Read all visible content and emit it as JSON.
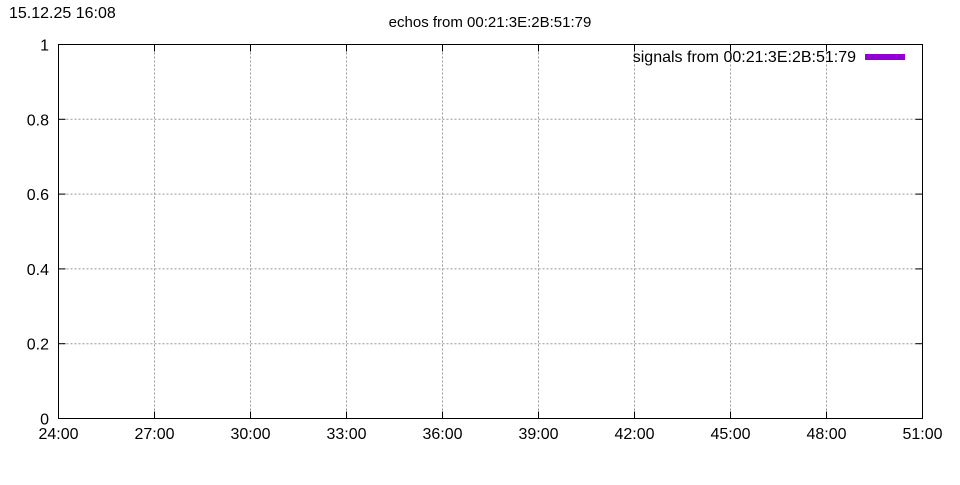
{
  "timestamp": "15.12.25 16:08",
  "chart_data": {
    "type": "line",
    "title": "echos from 00:21:3E:2B:51:79",
    "xlabel": "",
    "ylabel": "",
    "x_ticks": [
      "24:00",
      "27:00",
      "30:00",
      "33:00",
      "36:00",
      "39:00",
      "42:00",
      "45:00",
      "48:00",
      "51:00"
    ],
    "y_ticks": [
      "0",
      "0.2",
      "0.4",
      "0.6",
      "0.8",
      "1"
    ],
    "xlim": [
      "24:00",
      "51:00"
    ],
    "ylim": [
      0,
      1
    ],
    "grid": true,
    "legend_position": "top-right",
    "series": [
      {
        "name": "signals from 00:21:3E:2B:51:79",
        "color": "#9400d3",
        "x": [],
        "y": []
      }
    ]
  }
}
